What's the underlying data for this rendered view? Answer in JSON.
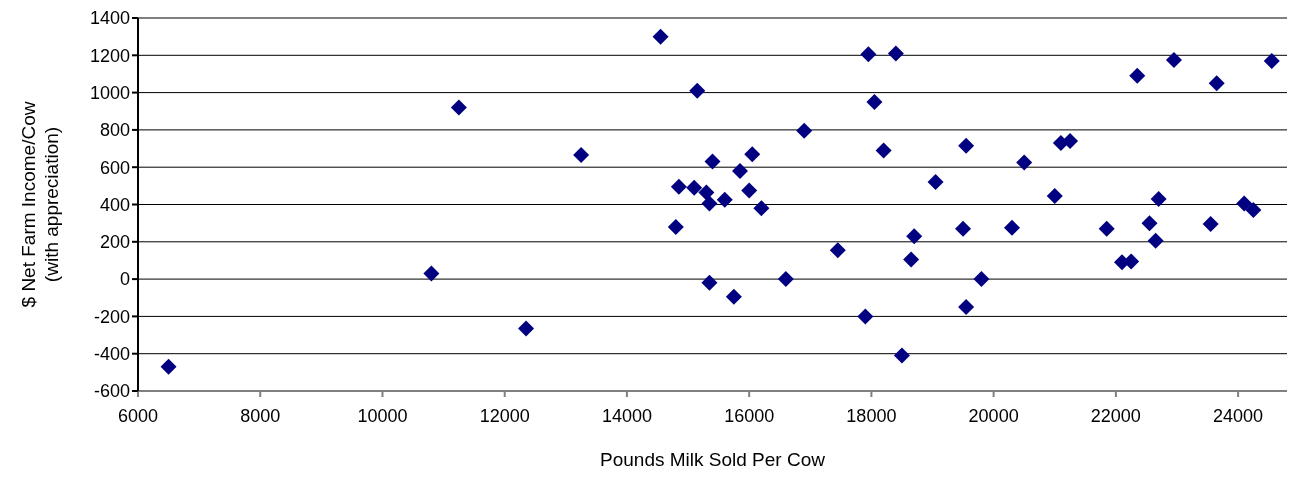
{
  "chart_data": {
    "type": "scatter",
    "xlabel": "Pounds Milk Sold Per Cow",
    "ylabel": "$ Net Farm Income/Cow\n(with appreciation)",
    "x": [
      6500,
      10800,
      11250,
      12350,
      13250,
      14550,
      14800,
      14850,
      15150,
      15100,
      15300,
      15350,
      15600,
      15400,
      15850,
      16050,
      16000,
      16200,
      15350,
      15750,
      16600,
      16900,
      17450,
      17950,
      18400,
      18050,
      18200,
      17900,
      18500,
      18700,
      18650,
      19050,
      19550,
      19500,
      19550,
      19800,
      20300,
      20500,
      21000,
      21100,
      21250,
      21850,
      22100,
      22250,
      22350,
      22550,
      22650,
      22700,
      22950,
      23550,
      23650,
      24100,
      24250,
      24550
    ],
    "series": [
      {
        "color": "#000080",
        "values": [
          -470,
          30,
          920,
          -265,
          665,
          1300,
          280,
          495,
          1010,
          490,
          465,
          405,
          425,
          630,
          580,
          670,
          475,
          380,
          -20,
          -95,
          0,
          795,
          155,
          1205,
          1210,
          950,
          690,
          -200,
          -410,
          230,
          105,
          520,
          715,
          270,
          -150,
          0,
          275,
          625,
          445,
          730,
          740,
          270,
          90,
          95,
          1090,
          300,
          205,
          430,
          1175,
          295,
          1050,
          405,
          370,
          1170
        ]
      }
    ],
    "xlim": [
      6000,
      24800
    ],
    "xticks": [
      6000,
      8000,
      10000,
      12000,
      14000,
      16000,
      18000,
      20000,
      22000,
      24000
    ],
    "ylim": [
      -600,
      1400
    ],
    "yticks": [
      -600,
      -400,
      -200,
      0,
      200,
      400,
      600,
      800,
      1000,
      1200,
      1400
    ],
    "grid": "y",
    "marker": "diamond",
    "legend": false
  }
}
